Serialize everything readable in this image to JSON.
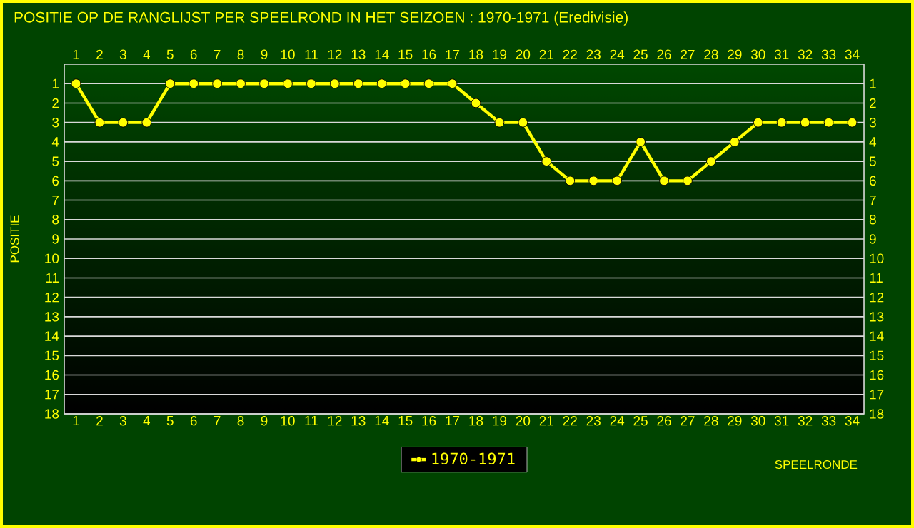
{
  "chart_data": {
    "type": "line",
    "title": "POSITIE OP DE RANGLIJST PER  SPEELROND IN HET SEIZOEN : 1970-1971 (Eredivisie)",
    "xlabel": "SPEELRONDE",
    "ylabel": "POSITIE",
    "x": [
      1,
      2,
      3,
      4,
      5,
      6,
      7,
      8,
      9,
      10,
      11,
      12,
      13,
      14,
      15,
      16,
      17,
      18,
      19,
      20,
      21,
      22,
      23,
      24,
      25,
      26,
      27,
      28,
      29,
      30,
      31,
      32,
      33,
      34
    ],
    "series": [
      {
        "name": "1970-1971",
        "color": "#ffff00",
        "values": [
          1,
          3,
          3,
          3,
          1,
          1,
          1,
          1,
          1,
          1,
          1,
          1,
          1,
          1,
          1,
          1,
          1,
          2,
          3,
          3,
          5,
          6,
          6,
          6,
          4,
          6,
          6,
          5,
          4,
          3,
          3,
          3,
          3,
          3
        ]
      }
    ],
    "xlim": [
      0.5,
      34.5
    ],
    "xticks": [
      1,
      2,
      3,
      4,
      5,
      6,
      7,
      8,
      9,
      10,
      11,
      12,
      13,
      14,
      15,
      16,
      17,
      18,
      19,
      20,
      21,
      22,
      23,
      24,
      25,
      26,
      27,
      28,
      29,
      30,
      31,
      32,
      33,
      34
    ],
    "x2lim": [
      0.5,
      34.5
    ],
    "x2ticks": [
      1,
      2,
      3,
      4,
      5,
      6,
      7,
      8,
      9,
      10,
      11,
      12,
      13,
      14,
      15,
      16,
      17,
      18,
      19,
      20,
      21,
      22,
      23,
      24,
      25,
      26,
      27,
      28,
      29,
      30,
      31,
      32,
      33,
      34
    ],
    "ylim": [
      18,
      0
    ],
    "yticks": [
      1,
      2,
      3,
      4,
      5,
      6,
      7,
      8,
      9,
      10,
      11,
      12,
      13,
      14,
      15,
      16,
      17,
      18
    ],
    "y2lim": [
      18,
      0
    ],
    "y2ticks": [
      1,
      2,
      3,
      4,
      5,
      6,
      7,
      8,
      9,
      10,
      11,
      12,
      13,
      14,
      15,
      16,
      17,
      18
    ],
    "grid": "y",
    "legend": "bottom",
    "marker": "circle",
    "line_style": "solid"
  }
}
